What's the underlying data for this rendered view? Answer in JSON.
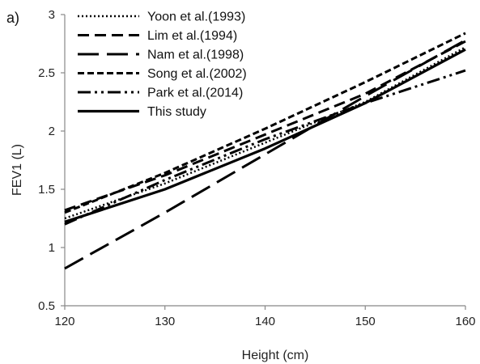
{
  "chart_data": {
    "type": "line",
    "panel_label": "a)",
    "xlabel": "Height (cm)",
    "ylabel": "FEV1 (L)",
    "xlim": [
      120,
      160
    ],
    "ylim": [
      0.5,
      3
    ],
    "xticks": [
      "120",
      "130",
      "140",
      "150",
      "160"
    ],
    "yticks": [
      "0.5",
      "1",
      "1.5",
      "2",
      "2.5",
      "3"
    ],
    "grid": false,
    "legend_position": "top-left",
    "series": [
      {
        "name": "Yoon et al.(1993)",
        "style": "dotted",
        "x": [
          120,
          130,
          140,
          150,
          160
        ],
        "y": [
          1.25,
          1.55,
          1.9,
          2.25,
          2.72
        ]
      },
      {
        "name": "Lim et al.(1994)",
        "style": "dashed",
        "x": [
          120,
          130,
          140,
          150,
          160
        ],
        "y": [
          1.32,
          1.62,
          1.97,
          2.32,
          2.77
        ]
      },
      {
        "name": "Nam et al.(1998)",
        "style": "long-dash",
        "x": [
          120,
          130,
          140,
          150,
          160
        ],
        "y": [
          0.82,
          1.3,
          1.8,
          2.3,
          2.78
        ]
      },
      {
        "name": "Song et al.(2002)",
        "style": "short-dash",
        "x": [
          120,
          130,
          140,
          150,
          160
        ],
        "y": [
          1.3,
          1.64,
          2.02,
          2.42,
          2.84
        ]
      },
      {
        "name": "Park et al.(2014)",
        "style": "dash-dot-dot",
        "x": [
          120,
          130,
          140,
          150,
          160
        ],
        "y": [
          1.2,
          1.58,
          1.93,
          2.24,
          2.52
        ]
      },
      {
        "name": "This study",
        "style": "solid",
        "x": [
          120,
          130,
          140,
          150,
          160
        ],
        "y": [
          1.22,
          1.5,
          1.85,
          2.24,
          2.7
        ]
      }
    ]
  }
}
